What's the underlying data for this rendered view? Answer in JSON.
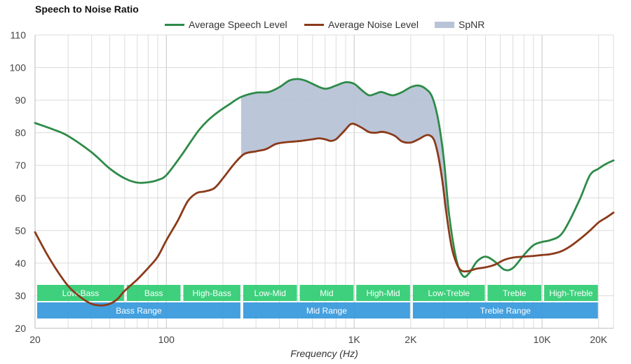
{
  "chart_data": {
    "type": "line",
    "title": "Speech to Noise Ratio",
    "xlabel": "Frequency (Hz)",
    "ylabel": "",
    "x_scale": "log",
    "xlim": [
      20,
      24000
    ],
    "ylim": [
      20,
      110
    ],
    "y_ticks": [
      20,
      30,
      40,
      50,
      60,
      70,
      80,
      90,
      100,
      110
    ],
    "x_ticks": [
      {
        "value": 20,
        "label": "20"
      },
      {
        "value": 100,
        "label": "100"
      },
      {
        "value": 1000,
        "label": "1K"
      },
      {
        "value": 2000,
        "label": "2K"
      },
      {
        "value": 10000,
        "label": "10K"
      },
      {
        "value": 20000,
        "label": "20K"
      }
    ],
    "grid": true,
    "legend_position": "top-center",
    "series": [
      {
        "name": "Average Speech Level",
        "color": "#2e8b48",
        "points": [
          [
            20,
            83
          ],
          [
            25,
            81
          ],
          [
            30,
            79
          ],
          [
            40,
            74
          ],
          [
            50,
            69
          ],
          [
            60,
            66
          ],
          [
            70,
            64.7
          ],
          [
            80,
            64.8
          ],
          [
            90,
            65.5
          ],
          [
            100,
            67
          ],
          [
            120,
            73
          ],
          [
            150,
            81
          ],
          [
            180,
            85.5
          ],
          [
            220,
            89
          ],
          [
            250,
            91
          ],
          [
            300,
            92.3
          ],
          [
            350,
            92.5
          ],
          [
            400,
            94
          ],
          [
            450,
            96
          ],
          [
            500,
            96.5
          ],
          [
            550,
            96
          ],
          [
            600,
            95
          ],
          [
            700,
            93.5
          ],
          [
            800,
            94.5
          ],
          [
            900,
            95.5
          ],
          [
            1000,
            95
          ],
          [
            1100,
            93
          ],
          [
            1200,
            91.5
          ],
          [
            1300,
            92
          ],
          [
            1400,
            92.5
          ],
          [
            1600,
            91.5
          ],
          [
            1800,
            92.5
          ],
          [
            2000,
            94
          ],
          [
            2200,
            94.5
          ],
          [
            2400,
            93.5
          ],
          [
            2600,
            91
          ],
          [
            2800,
            84
          ],
          [
            3000,
            72
          ],
          [
            3200,
            55
          ],
          [
            3500,
            41
          ],
          [
            3800,
            36
          ],
          [
            4100,
            37
          ],
          [
            4500,
            40.5
          ],
          [
            5000,
            42
          ],
          [
            5600,
            40.5
          ],
          [
            6300,
            38
          ],
          [
            7000,
            38.5
          ],
          [
            8000,
            42.5
          ],
          [
            9000,
            45.5
          ],
          [
            10000,
            46.5
          ],
          [
            11000,
            47
          ],
          [
            12500,
            48.5
          ],
          [
            14000,
            53
          ],
          [
            16000,
            60
          ],
          [
            18000,
            67
          ],
          [
            20000,
            69
          ],
          [
            22000,
            70.5
          ],
          [
            24000,
            71.5
          ]
        ]
      },
      {
        "name": "Average Noise Level",
        "color": "#8b3a1a",
        "points": [
          [
            20,
            49.5
          ],
          [
            23,
            43
          ],
          [
            26,
            38
          ],
          [
            30,
            33
          ],
          [
            35,
            29.5
          ],
          [
            40,
            27.5
          ],
          [
            45,
            27
          ],
          [
            50,
            27.5
          ],
          [
            55,
            29
          ],
          [
            60,
            31.5
          ],
          [
            70,
            35
          ],
          [
            80,
            38.5
          ],
          [
            90,
            42
          ],
          [
            100,
            47
          ],
          [
            115,
            53
          ],
          [
            130,
            59
          ],
          [
            145,
            61.5
          ],
          [
            160,
            62
          ],
          [
            180,
            63
          ],
          [
            200,
            66
          ],
          [
            230,
            70.5
          ],
          [
            260,
            73.5
          ],
          [
            300,
            74.3
          ],
          [
            340,
            75
          ],
          [
            380,
            76.5
          ],
          [
            420,
            77
          ],
          [
            480,
            77.3
          ],
          [
            520,
            77.5
          ],
          [
            600,
            78
          ],
          [
            650,
            78.3
          ],
          [
            700,
            78
          ],
          [
            750,
            77.5
          ],
          [
            800,
            78
          ],
          [
            850,
            79.5
          ],
          [
            900,
            81
          ],
          [
            950,
            82.5
          ],
          [
            1000,
            82.7
          ],
          [
            1100,
            81.5
          ],
          [
            1200,
            80.2
          ],
          [
            1300,
            80
          ],
          [
            1400,
            80.3
          ],
          [
            1500,
            80
          ],
          [
            1650,
            79
          ],
          [
            1800,
            77.3
          ],
          [
            2000,
            77
          ],
          [
            2200,
            78
          ],
          [
            2450,
            79.3
          ],
          [
            2650,
            78
          ],
          [
            2800,
            73
          ],
          [
            2950,
            65
          ],
          [
            3100,
            55
          ],
          [
            3300,
            45
          ],
          [
            3500,
            40
          ],
          [
            3700,
            37.8
          ],
          [
            4000,
            37.5
          ],
          [
            4500,
            38.3
          ],
          [
            5000,
            38.7
          ],
          [
            5600,
            39.5
          ],
          [
            6300,
            41
          ],
          [
            7000,
            41.7
          ],
          [
            8000,
            42
          ],
          [
            9000,
            42.2
          ],
          [
            10000,
            42.5
          ],
          [
            11000,
            42.7
          ],
          [
            12500,
            43.5
          ],
          [
            14000,
            45
          ],
          [
            16000,
            47.5
          ],
          [
            18000,
            50
          ],
          [
            20000,
            52.5
          ],
          [
            22000,
            54
          ],
          [
            24000,
            55.5
          ]
        ]
      },
      {
        "name": "SpNR",
        "color": "#b7c3d7",
        "type": "area",
        "x_range": [
          250,
          3150
        ]
      }
    ],
    "bands": [
      {
        "label": "Low-Bass",
        "range": [
          20,
          60
        ],
        "row": 1,
        "color": "#2ecc71"
      },
      {
        "label": "Bass",
        "range": [
          60,
          120
        ],
        "row": 1,
        "color": "#2ecc71"
      },
      {
        "label": "High-Bass",
        "range": [
          120,
          250
        ],
        "row": 1,
        "color": "#2ecc71"
      },
      {
        "label": "Low-Mid",
        "range": [
          250,
          500
        ],
        "row": 1,
        "color": "#2ecc71"
      },
      {
        "label": "Mid",
        "range": [
          500,
          1000
        ],
        "row": 1,
        "color": "#2ecc71"
      },
      {
        "label": "High-Mid",
        "range": [
          1000,
          2000
        ],
        "row": 1,
        "color": "#2ecc71"
      },
      {
        "label": "Low-Treble",
        "range": [
          2000,
          5000
        ],
        "row": 1,
        "color": "#2ecc71"
      },
      {
        "label": "Treble",
        "range": [
          5000,
          10000
        ],
        "row": 1,
        "color": "#2ecc71"
      },
      {
        "label": "High-Treble",
        "range": [
          10000,
          20000
        ],
        "row": 1,
        "color": "#2ecc71"
      },
      {
        "label": "Bass Range",
        "range": [
          20,
          250
        ],
        "row": 2,
        "color": "#3498db"
      },
      {
        "label": "Mid Range",
        "range": [
          250,
          2000
        ],
        "row": 2,
        "color": "#3498db"
      },
      {
        "label": "Treble Range",
        "range": [
          2000,
          20000
        ],
        "row": 2,
        "color": "#3498db"
      }
    ]
  }
}
